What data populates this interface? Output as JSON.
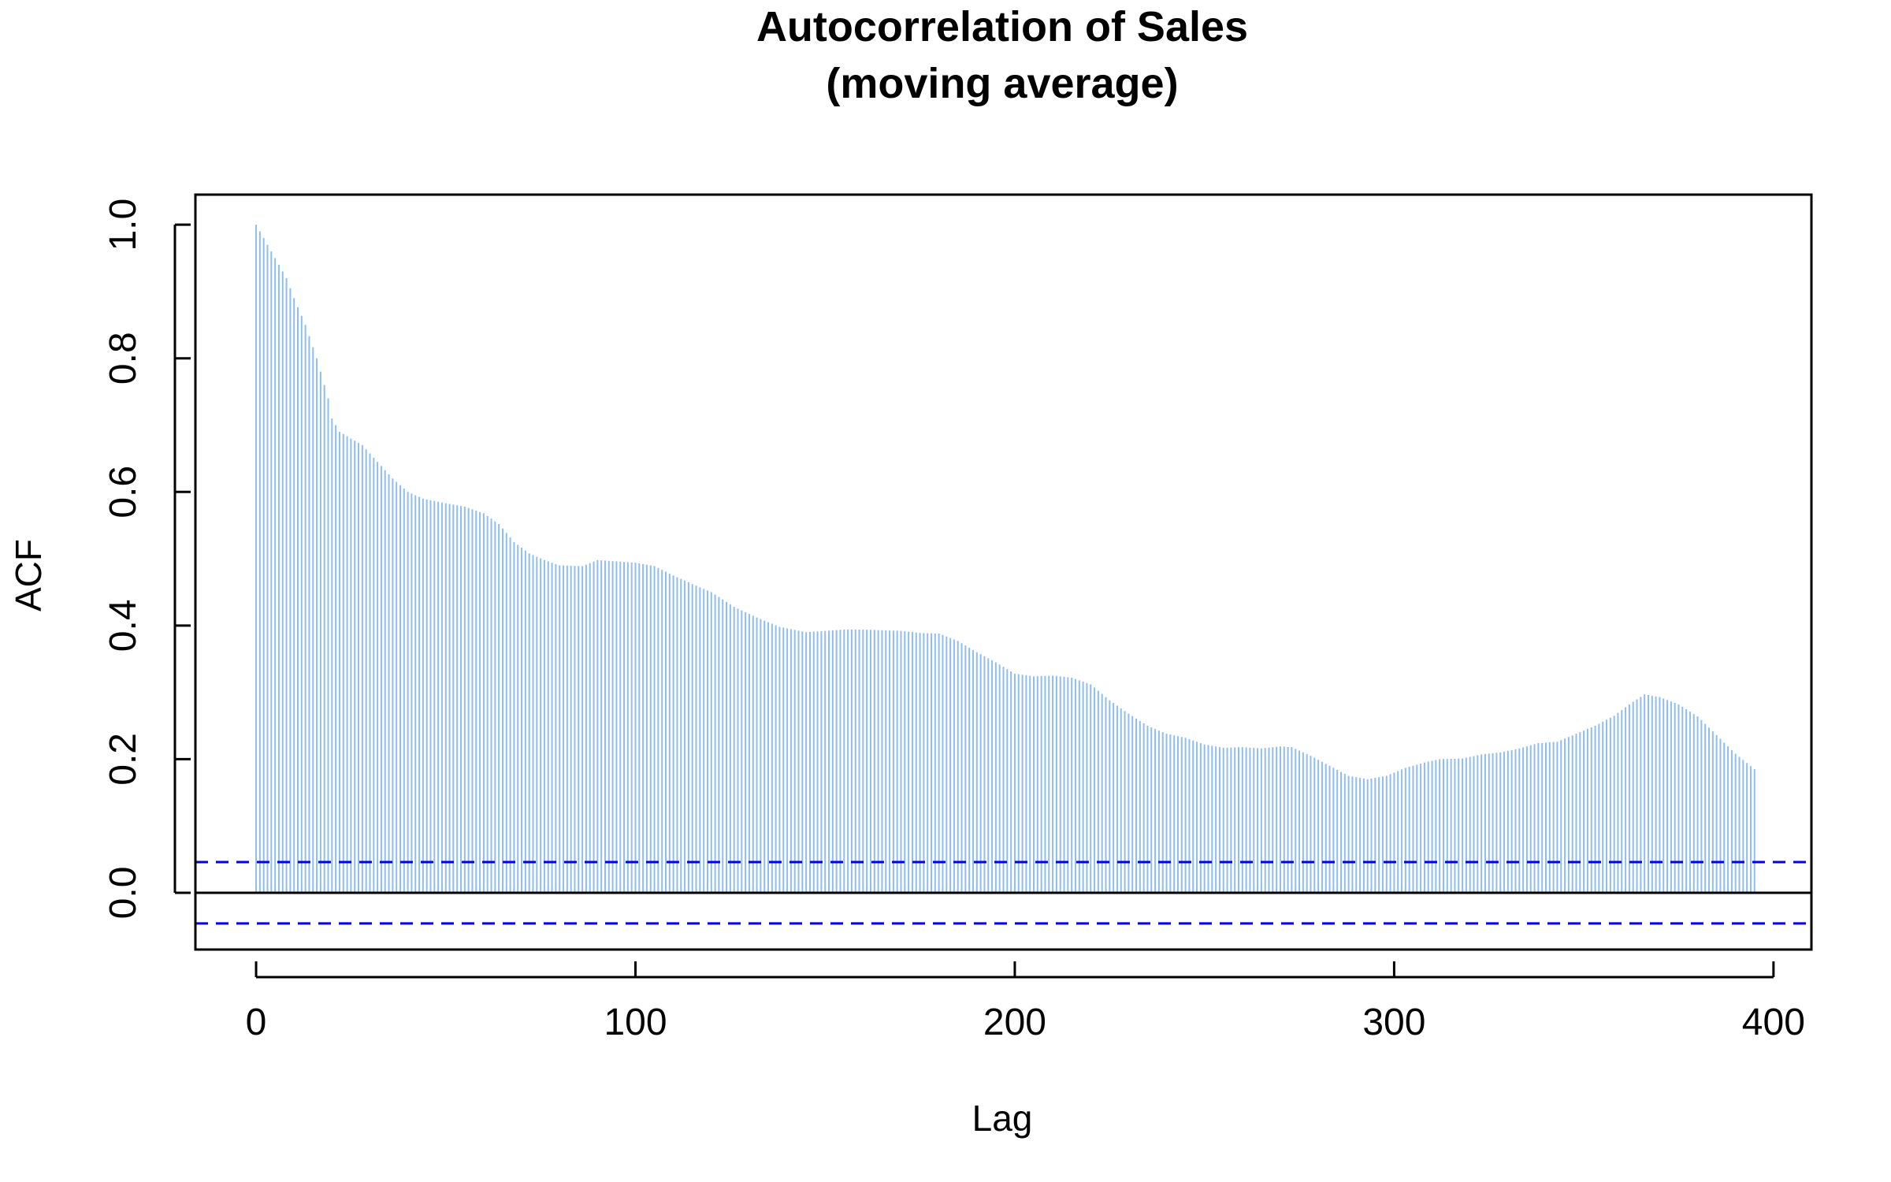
{
  "chart_data": {
    "type": "bar",
    "title": [
      "Autocorrelation of Sales",
      "(moving average)"
    ],
    "xlabel": "Lag",
    "ylabel": "ACF",
    "xlim": [
      -16,
      410
    ],
    "ylim": [
      -0.085,
      1.045
    ],
    "x_ticks": [
      0,
      100,
      200,
      300,
      400
    ],
    "x_tick_labels": [
      "0",
      "100",
      "200",
      "300",
      "400"
    ],
    "y_ticks": [
      0.0,
      0.2,
      0.4,
      0.6,
      0.8,
      1.0
    ],
    "y_tick_labels": [
      "0.0",
      "0.2",
      "0.4",
      "0.6",
      "0.8",
      "1.0"
    ],
    "lag_step": 1,
    "max_lag": 395,
    "acf_anchor_points": {
      "lag": [
        0,
        1,
        3,
        5,
        8,
        10,
        13,
        16,
        19,
        20,
        22,
        25,
        28,
        32,
        36,
        40,
        44,
        50,
        55,
        60,
        64,
        68,
        72,
        76,
        80,
        86,
        90,
        95,
        100,
        105,
        110,
        115,
        120,
        126,
        132,
        138,
        145,
        150,
        155,
        160,
        165,
        170,
        175,
        180,
        185,
        190,
        195,
        200,
        205,
        210,
        215,
        220,
        225,
        230,
        235,
        240,
        245,
        250,
        255,
        260,
        265,
        270,
        273,
        278,
        283,
        288,
        293,
        298,
        303,
        308,
        312,
        318,
        323,
        328,
        333,
        338,
        343,
        348,
        353,
        358,
        362,
        366,
        370,
        375,
        380,
        385,
        390,
        395
      ],
      "acf": [
        1.0,
        0.99,
        0.97,
        0.95,
        0.92,
        0.89,
        0.85,
        0.8,
        0.74,
        0.71,
        0.69,
        0.68,
        0.67,
        0.645,
        0.62,
        0.6,
        0.59,
        0.583,
        0.578,
        0.568,
        0.552,
        0.525,
        0.508,
        0.498,
        0.49,
        0.489,
        0.498,
        0.496,
        0.494,
        0.489,
        0.475,
        0.462,
        0.45,
        0.428,
        0.412,
        0.398,
        0.39,
        0.392,
        0.394,
        0.394,
        0.393,
        0.392,
        0.389,
        0.388,
        0.377,
        0.36,
        0.345,
        0.328,
        0.324,
        0.325,
        0.322,
        0.312,
        0.288,
        0.268,
        0.25,
        0.238,
        0.232,
        0.222,
        0.217,
        0.218,
        0.216,
        0.219,
        0.218,
        0.205,
        0.19,
        0.175,
        0.17,
        0.175,
        0.187,
        0.195,
        0.2,
        0.201,
        0.207,
        0.21,
        0.216,
        0.224,
        0.226,
        0.238,
        0.25,
        0.265,
        0.282,
        0.297,
        0.293,
        0.282,
        0.264,
        0.236,
        0.208,
        0.185
      ]
    },
    "confidence_bounds": [
      0.0459,
      -0.0459
    ],
    "zero_line": 0,
    "colors": {
      "bars": "#8fbdf0",
      "confidence": "#0000ee",
      "zero_line": "#000000",
      "frame": "#000000",
      "text": "#000000"
    }
  }
}
